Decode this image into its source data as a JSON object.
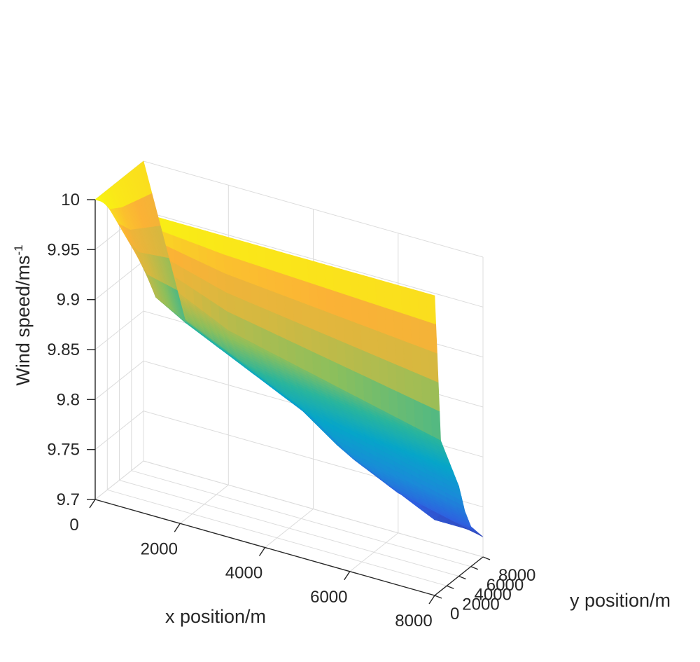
{
  "chart_data": {
    "type": "surface",
    "title": "",
    "xlabel": "x position/m",
    "ylabel": "y position/m",
    "zlabel": "Wind speed/ms",
    "zlabel_superscript": "-1",
    "xlim": [
      0,
      8000
    ],
    "ylim": [
      0,
      8000
    ],
    "zlim": [
      9.7,
      10
    ],
    "x_ticks": [
      0,
      2000,
      4000,
      6000,
      8000
    ],
    "x_tick_labels": [
      "0",
      "2000",
      "4000",
      "6000",
      "8000"
    ],
    "y_ticks": [
      0,
      2000,
      4000,
      6000,
      8000
    ],
    "y_tick_labels": [
      "0",
      "2000",
      "4000",
      "6000",
      "8000"
    ],
    "z_ticks": [
      9.7,
      9.75,
      9.8,
      9.85,
      9.9,
      9.95,
      10
    ],
    "z_tick_labels": [
      "9.7",
      "9.75",
      "9.8",
      "9.85",
      "9.9",
      "9.95",
      "10"
    ],
    "grid": true,
    "colormap": "parula",
    "colormap_stops": [
      "#352a87",
      "#2f5fe0",
      "#1a8bd8",
      "#06a5c9",
      "#2ab59c",
      "#8cbf5c",
      "#d6b840",
      "#fbb236",
      "#f9fb0e"
    ],
    "surface": {
      "x": [
        0,
        1000,
        2000,
        3000,
        4000,
        5000,
        6000,
        7000,
        8000
      ],
      "y": [
        0,
        1000,
        2000,
        3000,
        4000,
        5000,
        6000,
        7000,
        8000
      ],
      "z": [
        [
          10.0,
          10.0,
          10.0,
          10.0,
          10.0,
          10.0,
          10.0,
          10.0,
          10.0
        ],
        [
          10.0,
          9.94,
          9.92,
          9.9,
          9.89,
          9.88,
          9.87,
          9.86,
          9.85
        ],
        [
          10.0,
          9.92,
          9.9,
          9.88,
          9.87,
          9.86,
          9.85,
          9.84,
          9.83
        ],
        [
          10.0,
          9.9,
          9.88,
          9.86,
          9.85,
          9.84,
          9.83,
          9.82,
          9.81
        ],
        [
          10.0,
          9.89,
          9.87,
          9.85,
          9.83,
          9.82,
          9.81,
          9.8,
          9.79
        ],
        [
          10.0,
          9.88,
          9.86,
          9.84,
          9.82,
          9.79,
          9.78,
          9.77,
          9.76
        ],
        [
          10.0,
          9.87,
          9.85,
          9.83,
          9.81,
          9.78,
          9.76,
          9.75,
          9.74
        ],
        [
          10.0,
          9.86,
          9.84,
          9.82,
          9.8,
          9.77,
          9.75,
          9.73,
          9.73
        ],
        [
          10.0,
          9.85,
          9.83,
          9.81,
          9.79,
          9.76,
          9.74,
          9.73,
          9.72
        ]
      ]
    }
  }
}
